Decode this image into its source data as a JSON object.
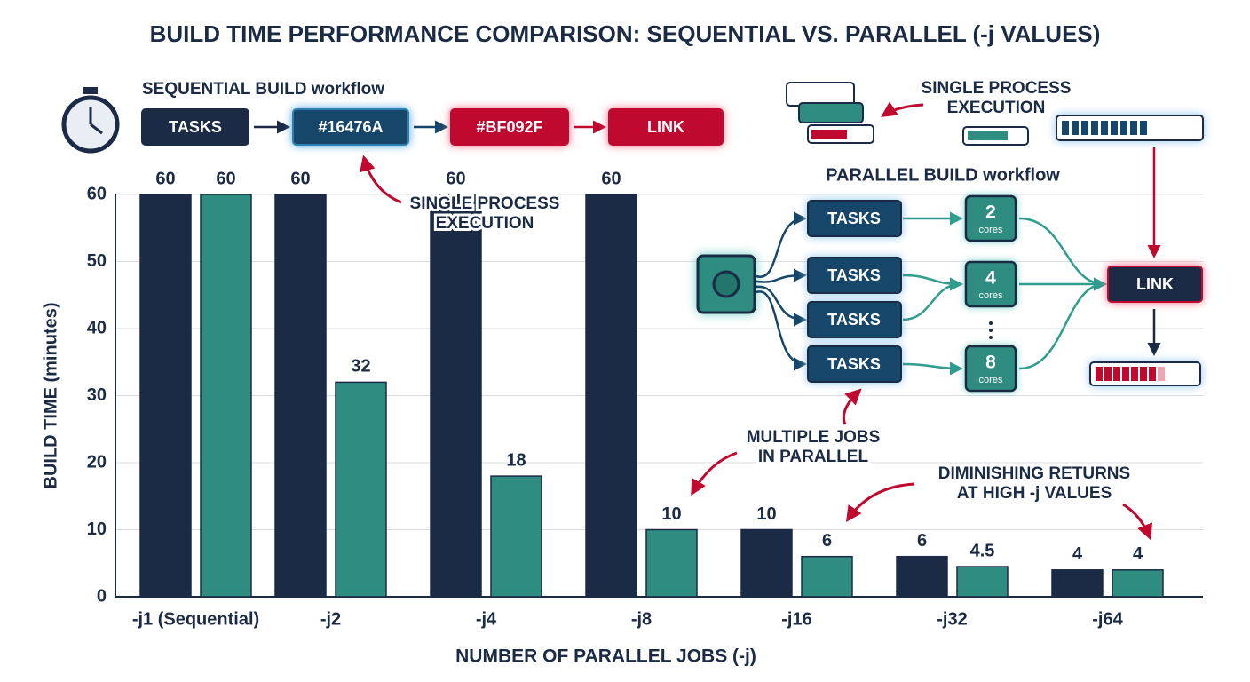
{
  "chart_data": {
    "type": "bar",
    "title": "BUILD TIME PERFORMANCE COMPARISON: SEQUENTIAL VS. PARALLEL (-j VALUES)",
    "x_label": "NUMBER OF PARALLEL JOBS (-j)",
    "y_label": "BUILD TIME (minutes)",
    "categories": [
      "-j1 (Sequential)",
      "-j2",
      "-j4",
      "-j8",
      "-j16",
      "-j32",
      "-j64"
    ],
    "series": [
      {
        "color": "#1b2b45",
        "values": [
          60,
          60,
          60,
          60,
          10,
          6,
          4
        ]
      },
      {
        "color": "#2f8c80",
        "values": [
          60,
          32,
          18,
          10,
          6,
          4.5,
          4
        ]
      }
    ],
    "ylim": [
      0,
      60
    ],
    "yticks": [
      0,
      10,
      20,
      30,
      40,
      50,
      60
    ],
    "grid": true
  },
  "sequential_workflow": {
    "title": "SEQUENTIAL BUILD workflow",
    "steps": [
      "TASKS",
      "#16476A",
      "#BF092F",
      "LINK"
    ]
  },
  "parallel_workflow": {
    "title": "PARALLEL BUILD workflow",
    "tasks": [
      "TASKS",
      "TASKS",
      "TASKS",
      "TASKS"
    ],
    "cores": [
      {
        "count": 2,
        "unit": "cores"
      },
      {
        "count": 4,
        "unit": "cores"
      },
      {
        "count": 8,
        "unit": "cores"
      }
    ],
    "link": "LINK"
  },
  "annotations": [
    {
      "lines": [
        "SINGLE PROCESS",
        "EXECUTION"
      ]
    },
    {
      "lines": [
        "SINGLE PROCESS",
        "EXECUTION"
      ]
    },
    {
      "lines": [
        "MULTIPLE JOBS",
        "IN PARALLEL"
      ]
    },
    {
      "lines": [
        "DIMINISHING RETURNS",
        "AT HIGH -j VALUES"
      ]
    }
  ]
}
